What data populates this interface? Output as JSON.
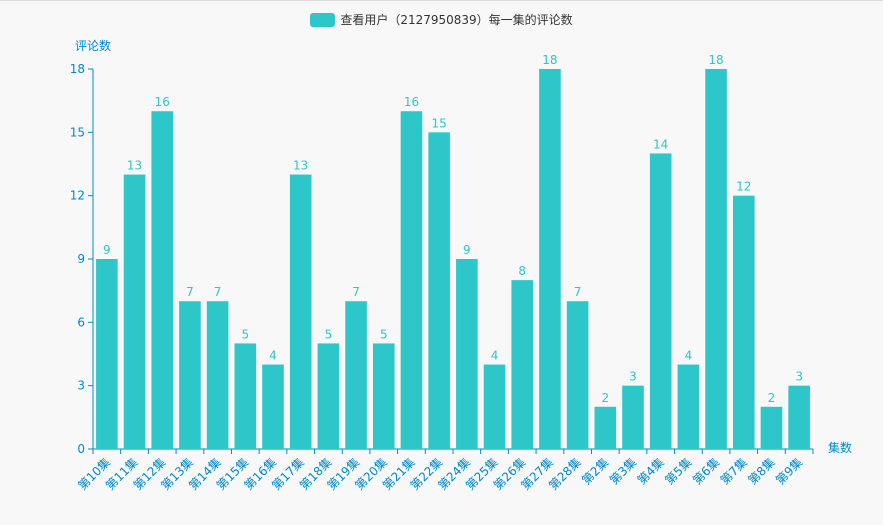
{
  "chart_data": {
    "type": "bar",
    "legend": "查看用户（2127950839）每一集的评论数",
    "ylabel": "评论数",
    "xlabel": "集数",
    "ylim": [
      0,
      18
    ],
    "yticks": [
      0,
      3,
      6,
      9,
      12,
      15,
      18
    ],
    "categories": [
      "第10集",
      "第11集",
      "第12集",
      "第13集",
      "第14集",
      "第15集",
      "第16集",
      "第17集",
      "第18集",
      "第19集",
      "第20集",
      "第21集",
      "第22集",
      "第24集",
      "第25集",
      "第26集",
      "第27集",
      "第28集",
      "第2集",
      "第3集",
      "第4集",
      "第5集",
      "第6集",
      "第7集",
      "第8集",
      "第9集"
    ],
    "values": [
      9,
      13,
      16,
      7,
      7,
      5,
      4,
      13,
      5,
      7,
      5,
      16,
      15,
      9,
      4,
      8,
      18,
      7,
      2,
      3,
      14,
      4,
      18,
      12,
      2,
      3
    ],
    "colors": {
      "bar": "#2ec7c9",
      "axis": "#008acd",
      "label": "#2ec7c9"
    }
  }
}
